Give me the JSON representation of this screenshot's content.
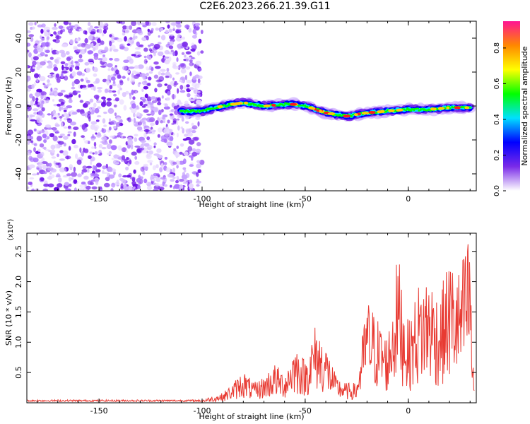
{
  "title": "C2E6.2023.266.21.39.G11",
  "colors": {
    "signal": "#e83a32",
    "speckle": "#7a2be8",
    "frame": "#000000"
  },
  "chart_data": [
    {
      "type": "heatmap",
      "xlabel": "Height of straight line (km)",
      "ylabel": "Frequency (Hz)",
      "xlim": [
        -185,
        33
      ],
      "ylim": [
        -50,
        50
      ],
      "xticks": [
        -150,
        -100,
        -50,
        0
      ],
      "yticks": [
        -40,
        -20,
        0,
        20,
        40
      ],
      "noise_region_x": [
        -185,
        -100
      ],
      "signal_track": {
        "x": [
          -110,
          -100,
          -90,
          -80,
          -70,
          -60,
          -55,
          -50,
          -40,
          -30,
          -20,
          -10,
          0,
          10,
          20,
          30
        ],
        "frequency": [
          -3,
          -3,
          0,
          2,
          0,
          1,
          1,
          0,
          -4,
          -6,
          -4,
          -3,
          -2,
          -2,
          -1,
          -1
        ]
      },
      "colorbar": {
        "label": "Normalized spectral amplitude",
        "range": [
          0,
          0.95
        ],
        "ticks": [
          "0.0",
          "0.2",
          "0.4",
          "0.6",
          "0.8"
        ],
        "colors": [
          "#ffffff",
          "#7a2be8",
          "#0000ff",
          "#00e0ff",
          "#00ff00",
          "#ffff00",
          "#ff8800",
          "#ff1493"
        ]
      }
    },
    {
      "type": "line",
      "xlabel": "Height of straight line (km)",
      "ylabel": "SNR (10 * v/v)",
      "scale_label": "(x10⁴)",
      "xlim": [
        -185,
        33
      ],
      "ylim": [
        0,
        2.8
      ],
      "xticks": [
        -150,
        -100,
        -50,
        0
      ],
      "yticks": [
        0.5,
        1.0,
        1.5,
        2.0,
        2.5
      ],
      "ytick_labels": [
        "0.5",
        "1.0",
        "1.5",
        "2.0",
        "2.5"
      ],
      "series": [
        {
          "x": [
            -185,
            -160,
            -140,
            -120,
            -105,
            -100,
            -95,
            -90,
            -85,
            -80,
            -75,
            -70,
            -65,
            -60,
            -55,
            -50,
            -45,
            -40,
            -35,
            -30,
            -25,
            -20,
            -15,
            -10,
            -5,
            0,
            5,
            10,
            15,
            20,
            25,
            30,
            31,
            32
          ],
          "y": [
            0.02,
            0.03,
            0.02,
            0.02,
            0.03,
            0.05,
            0.1,
            0.15,
            0.3,
            0.5,
            0.3,
            0.4,
            0.6,
            0.45,
            0.9,
            0.65,
            1.2,
            0.9,
            0.4,
            0.3,
            0.3,
            1.6,
            1.3,
            1.0,
            2.3,
            1.2,
            1.8,
            2.0,
            1.6,
            2.2,
            2.0,
            2.7,
            0.9,
            0.2
          ]
        }
      ]
    }
  ]
}
